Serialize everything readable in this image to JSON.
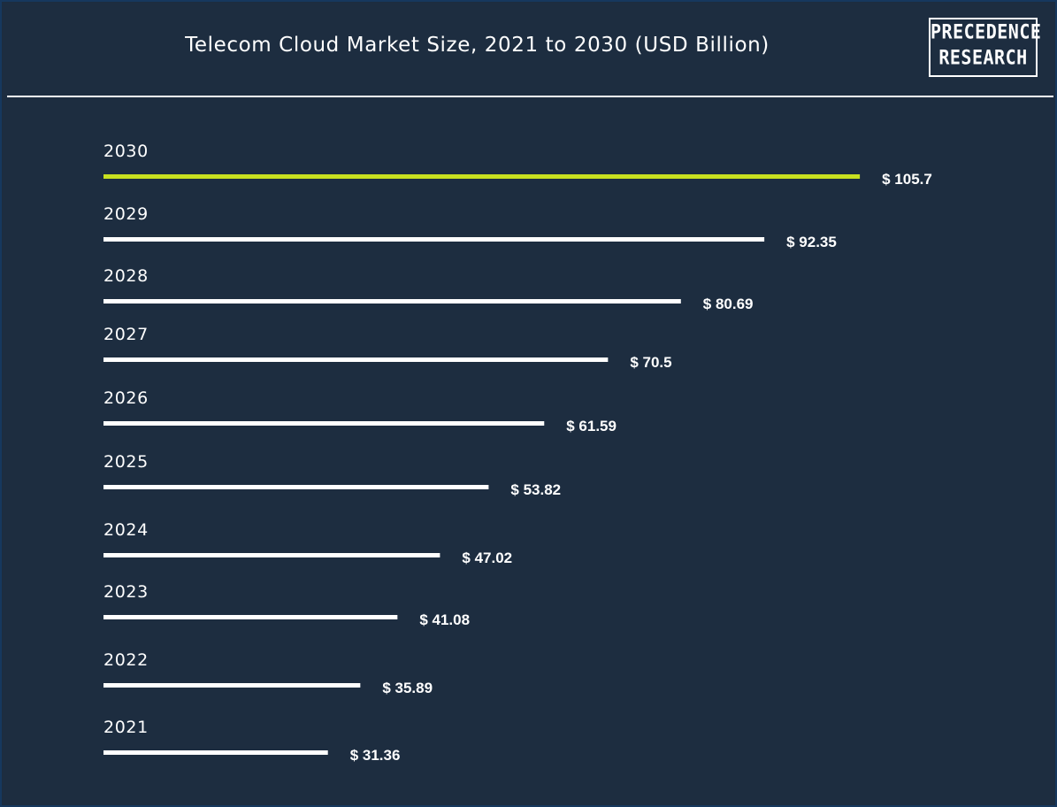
{
  "header": {
    "title": "Telecom Cloud Market Size, 2021 to 2030 (USD Billion)",
    "logo_line1": "PRECEDENCE",
    "logo_line2": "RESEARCH"
  },
  "colors": {
    "background": "#1d2d40",
    "bar": "#ffffff",
    "highlight_bar": "#c8e020",
    "text": "#ffffff"
  },
  "chart_data": {
    "type": "bar",
    "orientation": "horizontal",
    "title": "Telecom Cloud Market Size, 2021 to 2030 (USD Billion)",
    "categories": [
      "2030",
      "2029",
      "2028",
      "2027",
      "2026",
      "2025",
      "2024",
      "2023",
      "2022",
      "2021"
    ],
    "values": [
      105.7,
      92.35,
      80.69,
      70.5,
      61.59,
      53.82,
      47.02,
      41.08,
      35.89,
      31.36
    ],
    "value_labels": [
      "$ 105.7",
      "$ 92.35",
      "$ 80.69",
      "$ 70.5",
      "$ 61.59",
      "$ 53.82",
      "$ 47.02",
      "$ 41.08",
      "$ 35.89",
      "$ 31.36"
    ],
    "highlight_category": "2030",
    "xlabel": "",
    "ylabel": "",
    "grid": false,
    "legend": "none"
  }
}
